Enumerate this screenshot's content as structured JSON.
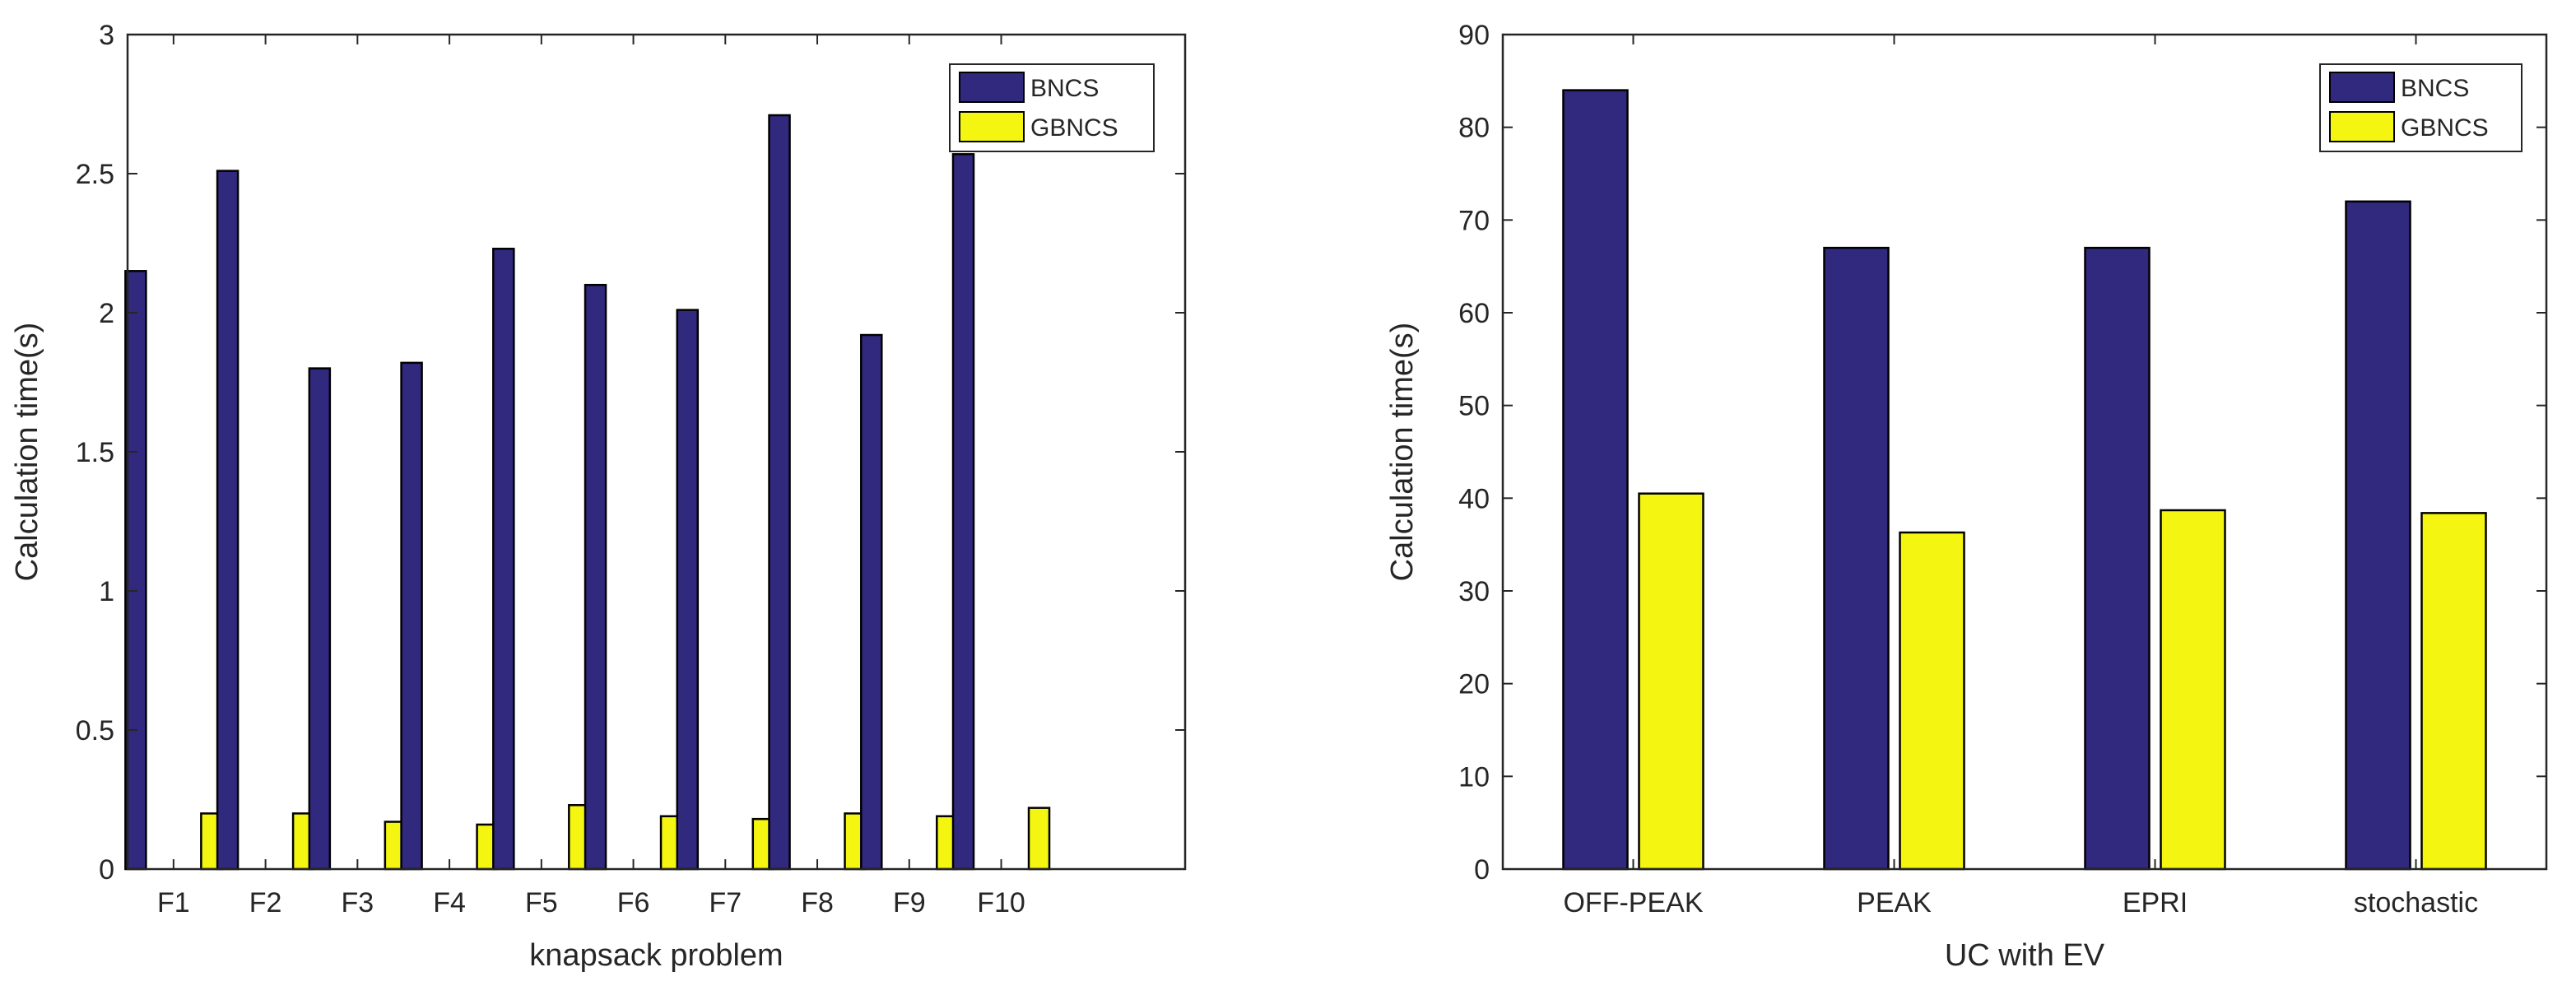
{
  "colors": {
    "bncs": "#31297e",
    "gbncs": "#f5f512",
    "axis": "#262626",
    "background": "#ffffff"
  },
  "chart_data": [
    {
      "type": "bar",
      "title": "",
      "xlabel": "knapsack problem",
      "ylabel": "Calculation time(s)",
      "ylim": [
        0,
        3
      ],
      "yticks": [
        0,
        0.5,
        1,
        1.5,
        2,
        2.5,
        3
      ],
      "ytick_labels": [
        "0",
        "0.5",
        "1",
        "1.5",
        "2",
        "2.5",
        "3"
      ],
      "categories": [
        "F1",
        "F2",
        "F3",
        "F4",
        "F5",
        "F6",
        "F7",
        "F8",
        "F9",
        "F10"
      ],
      "xlim": [
        0.5,
        12
      ],
      "grid": false,
      "legend_position": "top-right",
      "series": [
        {
          "name": "BNCS",
          "values": [
            2.15,
            2.51,
            1.8,
            1.82,
            2.23,
            2.1,
            2.01,
            2.71,
            1.92,
            2.57
          ]
        },
        {
          "name": "GBNCS",
          "values": [
            0.2,
            0.2,
            0.17,
            0.16,
            0.23,
            0.19,
            0.18,
            0.2,
            0.19,
            0.22
          ]
        }
      ]
    },
    {
      "type": "bar",
      "title": "",
      "xlabel": "UC with EV",
      "ylabel": "Calculation time(s)",
      "ylim": [
        0,
        90
      ],
      "yticks": [
        0,
        10,
        20,
        30,
        40,
        50,
        60,
        70,
        80,
        90
      ],
      "ytick_labels": [
        "0",
        "10",
        "20",
        "30",
        "40",
        "50",
        "60",
        "70",
        "80",
        "90"
      ],
      "categories": [
        "OFF-PEAK",
        "PEAK",
        "EPRI",
        "stochastic"
      ],
      "xlim": [
        0.5,
        4.5
      ],
      "grid": false,
      "legend_position": "top-right",
      "series": [
        {
          "name": "BNCS",
          "values": [
            84,
            67,
            67,
            72
          ]
        },
        {
          "name": "GBNCS",
          "values": [
            40.5,
            36.3,
            38.7,
            38.4
          ]
        }
      ]
    }
  ]
}
